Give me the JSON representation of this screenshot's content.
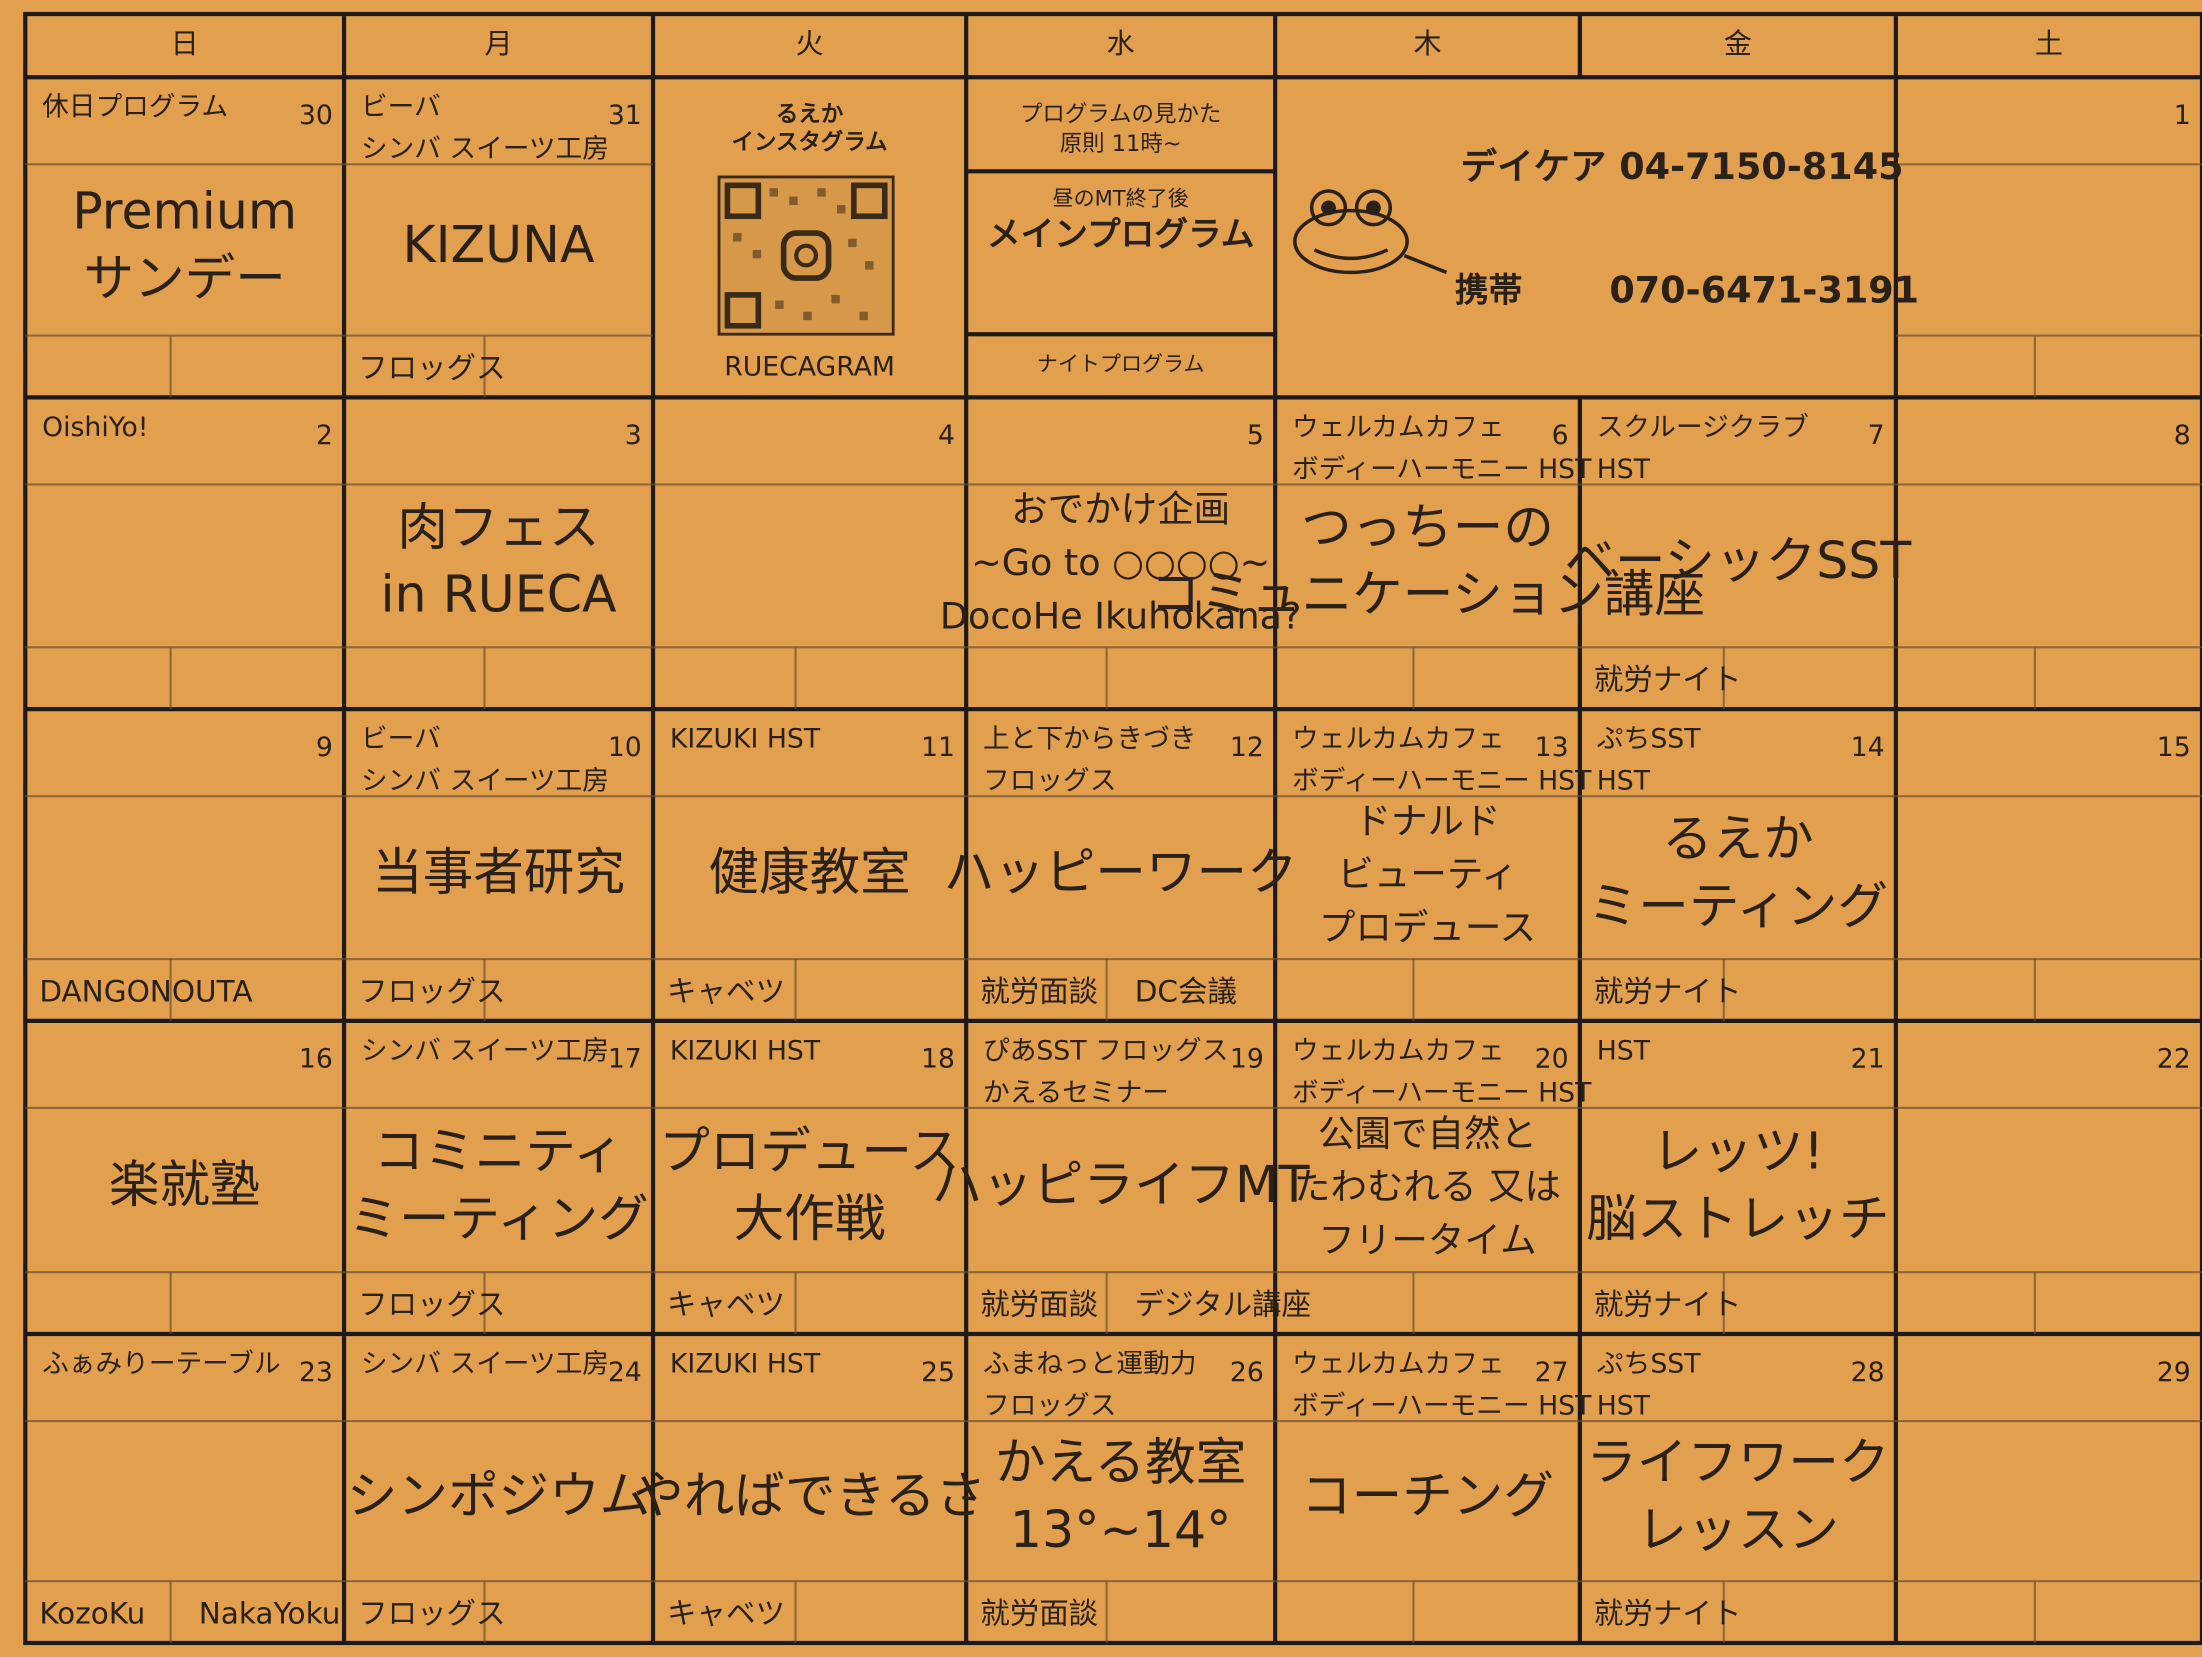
{
  "weekdays": [
    "日",
    "月",
    "火",
    "水",
    "木",
    "金",
    "土"
  ],
  "weeks": [
    [
      {
        "date": 30,
        "top": [
          "休日プログラム"
        ],
        "main": [
          "Premium",
          "サンデー"
        ],
        "foot": []
      },
      {
        "date": 31,
        "top": [
          "ビーバ",
          "シンバ スイーツ工房"
        ],
        "main": [
          "KIZUNA"
        ],
        "foot": [
          "フロッグス"
        ]
      },
      {
        "date": 1,
        "top": [],
        "main": [],
        "foot": []
      }
    ],
    [
      {
        "date": 2,
        "top": [
          "OishiYo!"
        ],
        "main": [],
        "foot": []
      },
      {
        "date": 3,
        "top": [],
        "main": [
          "肉フェス",
          "in RUECA"
        ],
        "foot": []
      },
      {
        "date": 4,
        "top": [],
        "main": [],
        "foot": []
      },
      {
        "date": 5,
        "top": [],
        "main": [
          "おでかけ企画",
          "~Go to ○○○○~",
          "DocoHe Ikuhokana?"
        ],
        "foot": []
      },
      {
        "date": 6,
        "top": [
          "ウェルカムカフェ",
          "ボディーハーモニー HST"
        ],
        "main": [
          "つっちーの",
          "コミュニケーション講座"
        ],
        "foot": []
      },
      {
        "date": 7,
        "top": [
          "スクルージクラブ",
          "HST"
        ],
        "main": [
          "ベーシックSST"
        ],
        "foot": [
          "就労ナイト"
        ]
      },
      {
        "date": 8,
        "top": [],
        "main": [],
        "foot": []
      }
    ],
    [
      {
        "date": 9,
        "top": [],
        "main": [],
        "foot": [
          "DANGONOUTA"
        ]
      },
      {
        "date": 10,
        "top": [
          "ビーバ",
          "シンバ スイーツ工房"
        ],
        "main": [
          "当事者研究"
        ],
        "foot": [
          "フロッグス"
        ]
      },
      {
        "date": 11,
        "top": [
          "KIZUKI HST"
        ],
        "main": [
          "健康教室"
        ],
        "foot": [
          "キャベツ"
        ]
      },
      {
        "date": 12,
        "top": [
          "上と下からきづき",
          "フロッグス"
        ],
        "main": [
          "ハッピーワーク"
        ],
        "foot": [
          "就労面談",
          "DC会議"
        ]
      },
      {
        "date": 13,
        "top": [
          "ウェルカムカフェ",
          "ボディーハーモニー HST"
        ],
        "main": [
          "ドナルド",
          "ビューティ",
          "プロデュース"
        ],
        "foot": []
      },
      {
        "date": 14,
        "top": [
          "ぷちSST",
          "HST"
        ],
        "main": [
          "るえか",
          "ミーティング"
        ],
        "foot": [
          "就労ナイト"
        ]
      },
      {
        "date": 15,
        "top": [],
        "main": [],
        "foot": []
      }
    ],
    [
      {
        "date": 16,
        "top": [],
        "main": [
          "楽就塾"
        ],
        "foot": []
      },
      {
        "date": 17,
        "top": [
          "シンバ スイーツ工房"
        ],
        "main": [
          "コミニティ",
          "ミーティング"
        ],
        "foot": [
          "フロッグス"
        ]
      },
      {
        "date": 18,
        "top": [
          "KIZUKI HST"
        ],
        "main": [
          "プロデュース",
          "大作戦"
        ],
        "foot": [
          "キャベツ"
        ]
      },
      {
        "date": 19,
        "top": [
          "ぴあSST フロッグス",
          "かえるセミナー"
        ],
        "main": [
          "ハッピライフMT"
        ],
        "foot": [
          "就労面談",
          "デジタル講座"
        ]
      },
      {
        "date": 20,
        "top": [
          "ウェルカムカフェ",
          "ボディーハーモニー HST"
        ],
        "main": [
          "公園で自然と",
          "たわむれる 又は",
          "フリータイム"
        ],
        "foot": []
      },
      {
        "date": 21,
        "top": [
          "HST"
        ],
        "main": [
          "レッツ!",
          "脳ストレッチ"
        ],
        "foot": [
          "就労ナイト"
        ]
      },
      {
        "date": 22,
        "top": [],
        "main": [],
        "foot": []
      }
    ],
    [
      {
        "date": 23,
        "top": [
          "ふぁみりーテーブル"
        ],
        "main": [],
        "foot": [
          "KozoKu",
          "NakaYoku"
        ]
      },
      {
        "date": 24,
        "top": [
          "シンバ スイーツ工房"
        ],
        "main": [
          "シンポジウム"
        ],
        "foot": [
          "フロッグス"
        ]
      },
      {
        "date": 25,
        "top": [
          "KIZUKI HST"
        ],
        "main": [
          "やればできるさ"
        ],
        "foot": [
          "キャベツ"
        ]
      },
      {
        "date": 26,
        "top": [
          "ふまねっと運動力",
          "フロッグス"
        ],
        "main": [
          "かえる教室",
          "13°~14°"
        ],
        "foot": [
          "就労面談"
        ]
      },
      {
        "date": 27,
        "top": [
          "ウェルカムカフェ",
          "ボディーハーモニー HST"
        ],
        "main": [
          "コーチング"
        ],
        "foot": []
      },
      {
        "date": 28,
        "top": [
          "ぷちSST",
          "HST"
        ],
        "main": [
          "ライフワーク",
          "レッスン"
        ],
        "foot": [
          "就労ナイト"
        ]
      },
      {
        "date": 29,
        "top": [],
        "main": [],
        "foot": []
      }
    ]
  ],
  "instagram": {
    "title": [
      "るえか",
      "インスタグラム"
    ],
    "caption": "RUECAGRAM"
  },
  "program_guide": {
    "title": "プログラムの見かた",
    "rule": "原則 11時~",
    "note": "昼のMT終了後",
    "main": "メインプログラム",
    "night": "ナイトプログラム"
  },
  "contact": {
    "daycare": "デイケア 04-7150-8145",
    "mobile_label": "携帯",
    "mobile": "070-6471-3191"
  }
}
